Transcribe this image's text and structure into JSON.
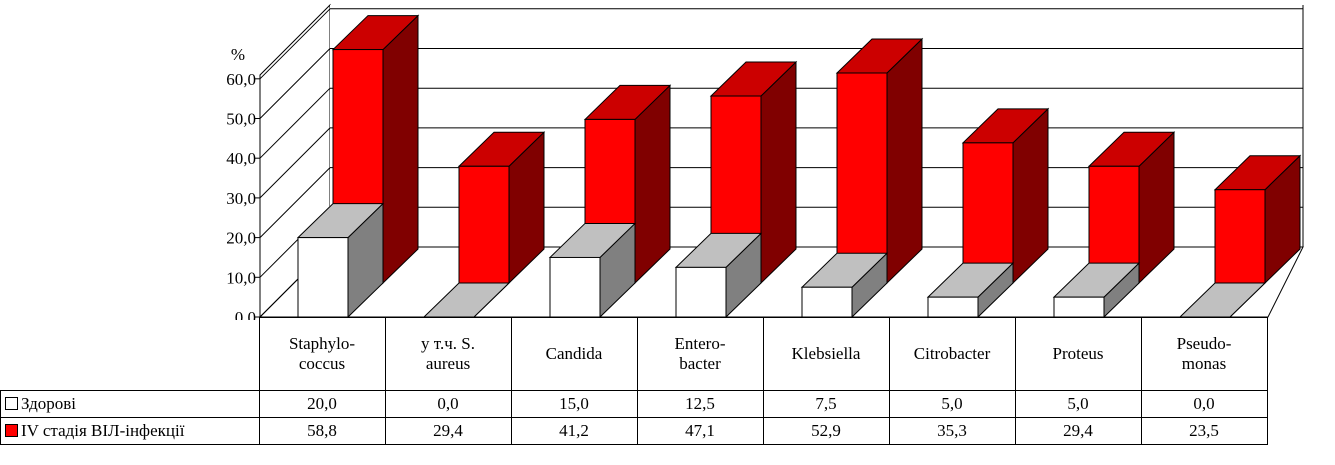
{
  "chart_data": {
    "type": "bar",
    "ylabel": "%",
    "ylim": [
      0,
      60
    ],
    "yticks": [
      "0,0",
      "10,0",
      "20,0",
      "30,0",
      "40,0",
      "50,0",
      "60,0"
    ],
    "grid": true,
    "categories": [
      [
        "Staphylo-",
        "coccus"
      ],
      [
        "у т.ч. S.",
        "aureus"
      ],
      [
        "Candida"
      ],
      [
        "Entero-",
        "bacter"
      ],
      [
        "Klebsiella"
      ],
      [
        "Citrobacter"
      ],
      [
        "Proteus"
      ],
      [
        "Pseudo-",
        "monas"
      ]
    ],
    "series": [
      {
        "name": "Здорові",
        "color": "#ffffff",
        "side_color": "#808080",
        "top_color": "#c0c0c0",
        "values": [
          20.0,
          0.0,
          15.0,
          12.5,
          7.5,
          5.0,
          5.0,
          0.0
        ],
        "labels": [
          "20,0",
          "0,0",
          "15,0",
          "12,5",
          "7,5",
          "5,0",
          "5,0",
          "0,0"
        ]
      },
      {
        "name": "IV стадія ВІЛ-інфекції",
        "color": "#ff0000",
        "side_color": "#800000",
        "top_color": "#cc0000",
        "values": [
          58.8,
          29.4,
          41.2,
          47.1,
          52.9,
          35.3,
          29.4,
          23.5
        ],
        "labels": [
          "58,8",
          "29,4",
          "41,2",
          "47,1",
          "52,9",
          "35,3",
          "29,4",
          "23,5"
        ]
      }
    ],
    "legend": "table"
  }
}
